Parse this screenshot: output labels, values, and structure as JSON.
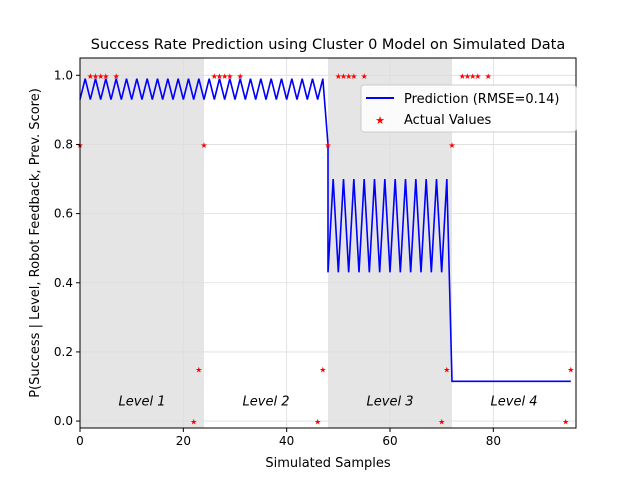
{
  "chart_data": {
    "type": "line",
    "title": "Success Rate Prediction using Cluster 0 Model on Simulated Data",
    "xlabel": "Simulated Samples",
    "ylabel": "P(Success | Level, Robot Feedback, Prev. Score)",
    "xlim": [
      0,
      96
    ],
    "ylim": [
      -0.02,
      1.05
    ],
    "xticks": [
      0,
      20,
      40,
      60,
      80
    ],
    "yticks": [
      0.0,
      0.2,
      0.4,
      0.6,
      0.8,
      1.0
    ],
    "xtick_labels": [
      "0",
      "20",
      "40",
      "60",
      "80"
    ],
    "ytick_labels": [
      "0.0",
      "0.2",
      "0.4",
      "0.6",
      "0.8",
      "1.0"
    ],
    "grid": true,
    "legend_position": "upper-right",
    "levels": [
      {
        "label": "Level 1",
        "start": 0,
        "end": 24,
        "shaded": true,
        "label_x": 12,
        "label_y": 0.06
      },
      {
        "label": "Level 2",
        "start": 24,
        "end": 48,
        "shaded": false,
        "label_x": 36,
        "label_y": 0.06
      },
      {
        "label": "Level 3",
        "start": 48,
        "end": 72,
        "shaded": true,
        "label_x": 60,
        "label_y": 0.06
      },
      {
        "label": "Level 4",
        "start": 72,
        "end": 96,
        "shaded": false,
        "label_x": 84,
        "label_y": 0.06
      }
    ],
    "series": [
      {
        "name": "Prediction (RMSE=0.14)",
        "style": "line",
        "color": "#0000ff",
        "segments": [
          {
            "x_start": 0,
            "x_end": 47,
            "values_alternating": [
              0.93,
              0.99
            ]
          },
          {
            "x_start": 48,
            "x_end": 71,
            "values_alternating": [
              0.43,
              0.7
            ]
          },
          {
            "x_start": 72,
            "x_end": 95,
            "values_alternating": [
              0.115,
              0.115
            ]
          }
        ],
        "transitions": [
          [
            47,
            0.93,
            48,
            0.8
          ],
          [
            71,
            0.43,
            72,
            0.115
          ]
        ]
      },
      {
        "name": "Actual Values",
        "style": "scatter",
        "color": "#ff0000",
        "x": [
          0,
          2,
          3,
          4,
          5,
          7,
          22,
          23,
          24,
          26,
          27,
          28,
          29,
          31,
          46,
          47,
          48,
          50,
          51,
          52,
          53,
          55,
          70,
          71,
          72,
          74,
          75,
          76,
          77,
          79,
          94,
          95
        ],
        "y": [
          0.8,
          1.0,
          1.0,
          1.0,
          1.0,
          1.0,
          0.0,
          0.15,
          0.8,
          1.0,
          1.0,
          1.0,
          1.0,
          1.0,
          0.0,
          0.15,
          0.8,
          1.0,
          1.0,
          1.0,
          1.0,
          1.0,
          0.0,
          0.15,
          0.8,
          1.0,
          1.0,
          1.0,
          1.0,
          1.0,
          0.0,
          0.15
        ]
      }
    ]
  },
  "colors": {
    "shade": "#e5e5e5",
    "grid": "#dddddd",
    "prediction": "#0000ff",
    "actual": "#ff0000"
  }
}
